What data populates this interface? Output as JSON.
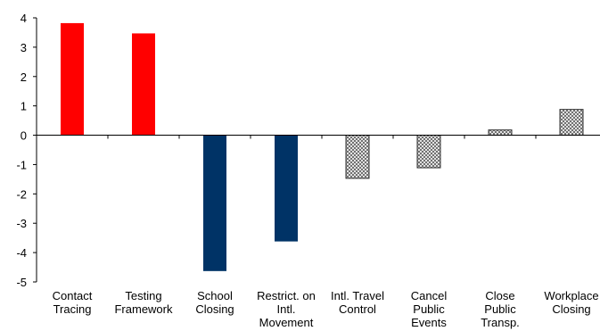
{
  "chart_data": {
    "type": "bar",
    "title": "",
    "xlabel": "",
    "ylabel": "",
    "ylim": [
      -5,
      4
    ],
    "yticks": [
      4,
      3,
      2,
      1,
      0,
      -1,
      -2,
      -3,
      -4,
      -5
    ],
    "ytick_labels": [
      "4",
      "3",
      "2",
      "1",
      "0",
      "-1",
      "-2",
      "-3",
      "-4",
      "-5"
    ],
    "grid": false,
    "legend": "none",
    "categories": [
      [
        "Contact",
        "Tracing"
      ],
      [
        "Testing",
        "Framework"
      ],
      [
        "School",
        "Closing"
      ],
      [
        "Restrict. on",
        "Intl.",
        "Movement"
      ],
      [
        "Intl. Travel",
        "Control"
      ],
      [
        "Cancel",
        "Public",
        "Events"
      ],
      [
        "Close",
        "Public",
        "Transp."
      ],
      [
        "Workplace",
        "Closing"
      ]
    ],
    "values": [
      3.82,
      3.47,
      -4.63,
      -3.62,
      -1.47,
      -1.11,
      0.18,
      0.88
    ],
    "bar_styles": [
      "red",
      "red",
      "navy",
      "navy",
      "hatched",
      "hatched",
      "hatched",
      "hatched"
    ],
    "colors": {
      "red": "#ff0000",
      "navy": "#003366",
      "hatch_line": "#555555",
      "hatch_bg": "#ffffff",
      "bar_outline": "#333333",
      "axis": "#000000"
    }
  }
}
